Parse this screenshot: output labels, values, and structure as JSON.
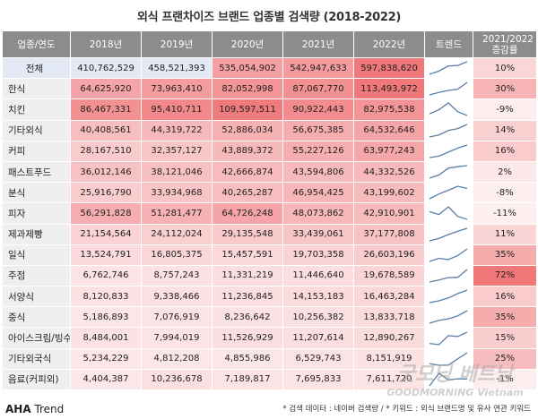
{
  "title": "외식 프랜차이즈 브랜드 업종별 검색량 (2018-2022)",
  "header": {
    "category": "업종/연도",
    "years": [
      "2018년",
      "2019년",
      "2020년",
      "2021년",
      "2022년"
    ],
    "trend": "트렌드",
    "growth": "2021/2022 증감률"
  },
  "chart_data": {
    "type": "table",
    "title": "외식 프랜차이즈 브랜드 업종별 검색량 (2018-2022)",
    "columns": [
      "2018년",
      "2019년",
      "2020년",
      "2021년",
      "2022년"
    ],
    "rows": [
      {
        "category": "전체",
        "values": [
          "410,762,529",
          "458,521,393",
          "535,054,902",
          "542,947,633",
          "597,838,620"
        ],
        "growth": "10%"
      },
      {
        "category": "한식",
        "values": [
          "64,625,920",
          "73,963,410",
          "82,052,998",
          "87,067,770",
          "113,493,972"
        ],
        "growth": "30%"
      },
      {
        "category": "치킨",
        "values": [
          "86,467,331",
          "95,410,711",
          "109,597,511",
          "90,922,443",
          "82,975,538"
        ],
        "growth": "-9%"
      },
      {
        "category": "기타외식",
        "values": [
          "40,408,561",
          "44,319,722",
          "52,886,034",
          "56,675,385",
          "64,532,646"
        ],
        "growth": "14%"
      },
      {
        "category": "커피",
        "values": [
          "28,167,510",
          "32,357,127",
          "43,889,372",
          "55,227,126",
          "63,977,243"
        ],
        "growth": "16%"
      },
      {
        "category": "패스트푸드",
        "values": [
          "36,012,146",
          "38,121,046",
          "42,666,874",
          "43,594,806",
          "44,332,526"
        ],
        "growth": "2%"
      },
      {
        "category": "분식",
        "values": [
          "25,916,790",
          "33,934,968",
          "40,265,287",
          "46,954,425",
          "43,199,602"
        ],
        "growth": "-8%"
      },
      {
        "category": "피자",
        "values": [
          "56,291,828",
          "51,281,477",
          "64,726,248",
          "48,073,862",
          "42,910,901"
        ],
        "growth": "-11%"
      },
      {
        "category": "제과제빵",
        "values": [
          "21,154,564",
          "24,112,024",
          "29,135,548",
          "33,439,061",
          "37,177,808"
        ],
        "growth": "11%"
      },
      {
        "category": "일식",
        "values": [
          "13,524,791",
          "16,805,375",
          "15,457,591",
          "19,703,358",
          "26,603,196"
        ],
        "growth": "35%"
      },
      {
        "category": "주점",
        "values": [
          "6,762,746",
          "8,757,243",
          "11,331,219",
          "11,446,640",
          "19,678,589"
        ],
        "growth": "72%"
      },
      {
        "category": "서양식",
        "values": [
          "8,120,833",
          "9,338,466",
          "11,236,845",
          "14,153,183",
          "16,463,284"
        ],
        "growth": "16%"
      },
      {
        "category": "중식",
        "values": [
          "5,186,893",
          "7,076,919",
          "8,236,642",
          "10,256,382",
          "13,833,718"
        ],
        "growth": "35%"
      },
      {
        "category": "아이스크림/빙수",
        "values": [
          "8,484,001",
          "7,994,019",
          "11,526,929",
          "11,207,614",
          "12,890,267"
        ],
        "growth": "15%"
      },
      {
        "category": "기타외국식",
        "values": [
          "5,234,229",
          "4,812,208",
          "4,855,986",
          "6,529,743",
          "8,151,919"
        ],
        "growth": "25%"
      },
      {
        "category": "음료(커피외)",
        "values": [
          "4,404,387",
          "10,236,678",
          "7,189,817",
          "7,695,833",
          "7,611,720"
        ],
        "growth": "-1%"
      }
    ]
  },
  "colors": {
    "header_bg": "#8c8c8c",
    "heat_high": "#f0787a",
    "heat_low": "#fdeff0",
    "total_cell": "#e3e9f5",
    "trend_line": "#5a7ea6",
    "growth_high": "#f07878"
  },
  "footer": {
    "brand_bold": "AHA",
    "brand_rest": " Trend",
    "note": "* 검색 데이터 : 네이버 검색량 / * 키워드 : 외식 브랜드명 및 유사 연관 키워드"
  },
  "watermark": {
    "line1": "굿모닝 베트남",
    "line2": "GOODMORNING Vietnam"
  }
}
